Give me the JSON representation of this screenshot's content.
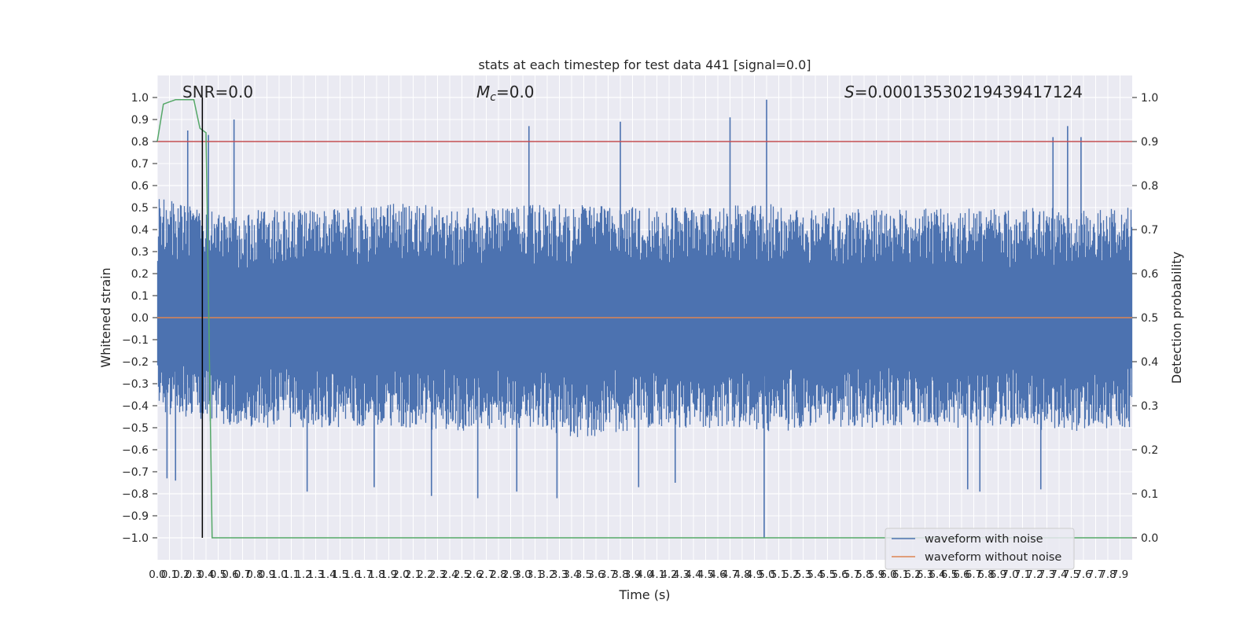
{
  "chart_data": {
    "type": "line",
    "title": "stats at each timestep for test data 441 [signal=0.0]",
    "xlabel": "Time (s)",
    "ylabel": "Whitened strain",
    "y2label": "Detection probability",
    "xlim": [
      0.0,
      8.0
    ],
    "ylim": [
      -1.1,
      1.1
    ],
    "y2lim": [
      -0.05,
      1.05
    ],
    "x_ticks": [
      0.0,
      0.1,
      0.2,
      0.3,
      0.4,
      0.5,
      0.6,
      0.7,
      0.8,
      0.9,
      1.0,
      1.1,
      1.2,
      1.3,
      1.4,
      1.5,
      1.6,
      1.7,
      1.8,
      1.9,
      2.0,
      2.1,
      2.2,
      2.3,
      2.4,
      2.5,
      2.6,
      2.7,
      2.8,
      2.9,
      3.0,
      3.1,
      3.2,
      3.3,
      3.4,
      3.5,
      3.6,
      3.7,
      3.8,
      3.9,
      4.0,
      4.1,
      4.2,
      4.3,
      4.4,
      4.5,
      4.6,
      4.7,
      4.8,
      4.9,
      5.0,
      5.1,
      5.2,
      5.3,
      5.4,
      5.5,
      5.6,
      5.7,
      5.8,
      5.9,
      6.0,
      6.1,
      6.2,
      6.3,
      6.4,
      6.5,
      6.6,
      6.7,
      6.8,
      6.9,
      7.0,
      7.1,
      7.2,
      7.3,
      7.4,
      7.5,
      7.6,
      7.7,
      7.8,
      7.9
    ],
    "y_ticks": [
      1.0,
      0.9,
      0.8,
      0.7,
      0.6,
      0.5,
      0.4,
      0.3,
      0.2,
      0.1,
      0.0,
      -0.1,
      -0.2,
      -0.3,
      -0.4,
      -0.5,
      -0.6,
      -0.7,
      -0.8,
      -0.9,
      -1.0
    ],
    "y2_ticks": [
      1.0,
      0.9,
      0.8,
      0.7,
      0.6,
      0.5,
      0.4,
      0.3,
      0.2,
      0.1,
      0.0
    ],
    "grid": true,
    "legend_position": "bottom-right",
    "annotations": {
      "snr": "SNR=0.0",
      "mc_symbol": "M",
      "mc_subscript": "c",
      "mc_value": "=0.0",
      "s_symbol": "S",
      "s_value": "=0.00013530219439417124"
    },
    "series": [
      {
        "name": "waveform with noise",
        "color": "#4c72b0",
        "envelope_upper": [
          [
            0.0,
            0.55
          ],
          [
            0.3,
            0.5
          ],
          [
            0.6,
            0.48
          ],
          [
            1.0,
            0.5
          ],
          [
            1.5,
            0.5
          ],
          [
            2.0,
            0.52
          ],
          [
            2.5,
            0.5
          ],
          [
            3.0,
            0.52
          ],
          [
            3.5,
            0.52
          ],
          [
            4.0,
            0.5
          ],
          [
            4.5,
            0.5
          ],
          [
            5.0,
            0.52
          ],
          [
            5.5,
            0.5
          ],
          [
            6.0,
            0.5
          ],
          [
            6.5,
            0.5
          ],
          [
            7.0,
            0.5
          ],
          [
            7.5,
            0.5
          ],
          [
            8.0,
            0.5
          ]
        ],
        "envelope_lower": [
          [
            0.0,
            -0.45
          ],
          [
            0.3,
            -0.45
          ],
          [
            0.6,
            -0.5
          ],
          [
            1.0,
            -0.5
          ],
          [
            1.5,
            -0.5
          ],
          [
            2.0,
            -0.5
          ],
          [
            2.5,
            -0.52
          ],
          [
            3.0,
            -0.5
          ],
          [
            3.5,
            -0.55
          ],
          [
            4.0,
            -0.5
          ],
          [
            4.5,
            -0.5
          ],
          [
            5.0,
            -0.52
          ],
          [
            5.5,
            -0.5
          ],
          [
            6.0,
            -0.5
          ],
          [
            6.5,
            -0.5
          ],
          [
            7.0,
            -0.5
          ],
          [
            7.5,
            -0.52
          ],
          [
            8.0,
            -0.5
          ]
        ],
        "peaks": [
          [
            0.25,
            0.85
          ],
          [
            0.42,
            0.83
          ],
          [
            0.63,
            0.9
          ],
          [
            3.05,
            0.87
          ],
          [
            3.8,
            0.89
          ],
          [
            4.7,
            0.91
          ],
          [
            5.0,
            0.99
          ],
          [
            7.35,
            0.82
          ],
          [
            7.47,
            0.87
          ],
          [
            7.58,
            0.82
          ]
        ],
        "troughs": [
          [
            0.08,
            -0.73
          ],
          [
            0.15,
            -0.74
          ],
          [
            1.23,
            -0.79
          ],
          [
            1.78,
            -0.77
          ],
          [
            2.25,
            -0.81
          ],
          [
            2.63,
            -0.82
          ],
          [
            2.95,
            -0.79
          ],
          [
            3.28,
            -0.82
          ],
          [
            3.95,
            -0.77
          ],
          [
            4.25,
            -0.75
          ],
          [
            4.98,
            -1.0
          ],
          [
            6.65,
            -0.78
          ],
          [
            6.75,
            -0.79
          ],
          [
            7.25,
            -0.78
          ]
        ]
      },
      {
        "name": "waveform without noise",
        "color": "#dd8452",
        "x": [
          0.0,
          8.0
        ],
        "y": [
          0.0,
          0.0
        ]
      },
      {
        "name": "",
        "color": "#55a868",
        "axis": "right",
        "x": [
          0.0,
          0.05,
          0.1,
          0.15,
          0.2,
          0.25,
          0.3,
          0.35,
          0.4,
          0.45,
          8.0
        ],
        "y": [
          0.9,
          0.985,
          0.99,
          0.995,
          0.995,
          0.995,
          0.995,
          0.93,
          0.92,
          0.0,
          0.0
        ]
      }
    ],
    "reference_lines": [
      {
        "orientation": "horizontal",
        "axis": "right",
        "value": 0.9,
        "color": "#c44e52"
      },
      {
        "orientation": "vertical",
        "value": 0.37,
        "ymin": -1.0,
        "ymax": 1.0,
        "color": "#000000"
      }
    ]
  }
}
